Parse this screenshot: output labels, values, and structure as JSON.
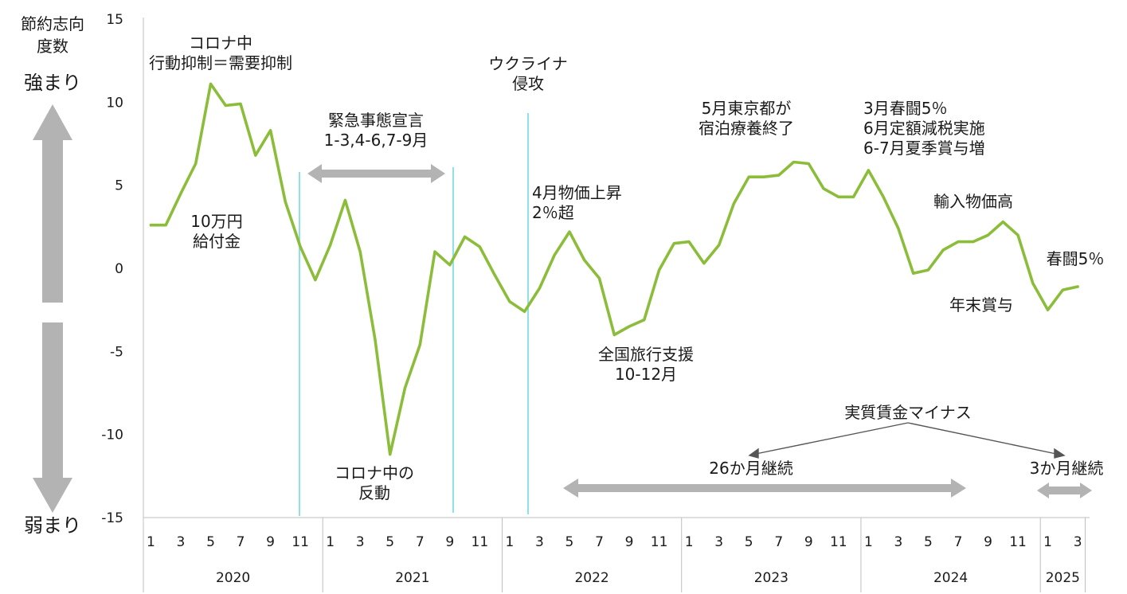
{
  "chart_data": {
    "type": "line",
    "ylim": [
      -15,
      15
    ],
    "yticks": [
      "15",
      "10",
      "5",
      "0",
      "-5",
      "-10",
      "-15"
    ],
    "ylabel_lines": [
      "節約志向",
      "度数"
    ],
    "y_direction_labels": {
      "up": "強まり",
      "down": "弱まり"
    },
    "x_month_labels": [
      "1",
      "3",
      "5",
      "7",
      "9",
      "11",
      "1",
      "3",
      "5",
      "7",
      "9",
      "11",
      "1",
      "3",
      "5",
      "7",
      "9",
      "11",
      "1",
      "3",
      "5",
      "7",
      "9",
      "11",
      "1",
      "3",
      "5",
      "7",
      "9",
      "11",
      "1",
      "3"
    ],
    "years": [
      "2020",
      "2021",
      "2022",
      "2023",
      "2024",
      "2025"
    ],
    "series": [
      {
        "color": "#8cbd3a",
        "values": [
          2.6,
          2.6,
          4.5,
          6.3,
          11.1,
          9.8,
          9.9,
          6.8,
          8.3,
          4.0,
          1.3,
          -0.7,
          1.4,
          4.1,
          1.0,
          -4.3,
          -11.2,
          -7.2,
          -4.6,
          1.0,
          0.2,
          1.9,
          1.3,
          -0.4,
          -2.0,
          -2.6,
          -1.2,
          0.8,
          2.2,
          0.5,
          -0.6,
          -4.0,
          -3.5,
          -3.1,
          -0.1,
          1.5,
          1.6,
          0.3,
          1.4,
          3.9,
          5.5,
          5.5,
          5.6,
          6.4,
          6.3,
          4.8,
          4.3,
          4.3,
          5.9,
          4.3,
          2.4,
          -0.3,
          -0.1,
          1.1,
          1.6,
          1.6,
          2.0,
          2.8,
          2.0,
          -0.9,
          -2.5,
          -1.3,
          -1.1
        ]
      }
    ]
  },
  "annotations": {
    "corona": [
      "コロナ中",
      "行動抑制＝需要抑制"
    ],
    "benefit": [
      "10万円",
      "給付金"
    ],
    "emergency": [
      "緊急事態宣言",
      "1-3,4-6,7-9月"
    ],
    "rebound": [
      "コロナ中の",
      "反動"
    ],
    "ukraine": [
      "ウクライナ",
      "侵攻"
    ],
    "prices": [
      "4月物価上昇",
      "2％超"
    ],
    "travel": [
      "全国旅行支援",
      "10-12月"
    ],
    "tokyo": [
      "5月東京都が",
      "宿泊療養終了"
    ],
    "shunto2024": [
      "3月春闘5％",
      "6月定額減税実施",
      "6-7月夏季賞与増"
    ],
    "import_prices": "輸入物価高",
    "year_end_bonus": "年末賞与",
    "shunto2025": "春闘5％",
    "real_wage": "実質賃金マイナス",
    "continue26": "26か月継続",
    "continue3": "3か月継続"
  },
  "colors": {
    "line": "#8cbd3a",
    "vline": "#66d9e0",
    "arrow": "#b3b3b3",
    "axis": "#bfbfbf",
    "text": "#1a1a1a",
    "pointer": "#555555"
  }
}
